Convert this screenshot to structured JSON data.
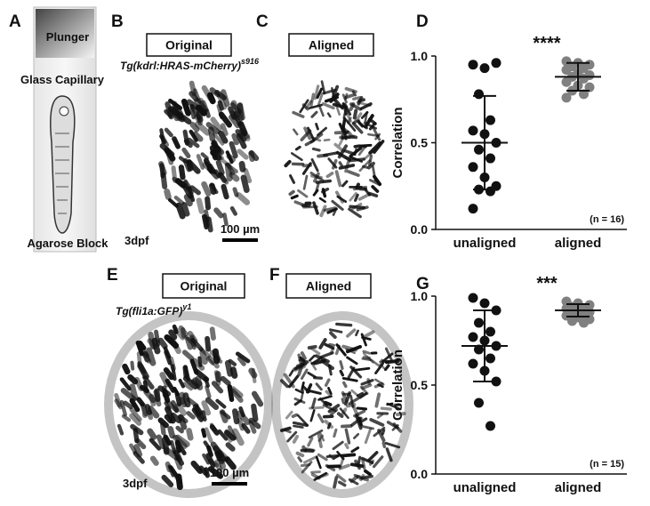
{
  "panel_a": {
    "letter": "A",
    "plunger": "Plunger",
    "capillary": "Glass Capillary",
    "block": "Agarose Block"
  },
  "panels": [
    {
      "letter": "B",
      "box": "Original",
      "transgene": {
        "text": "Tg(kdrl:HRAS-mCherry)",
        "superscript": "s916"
      },
      "stage": "3dpf",
      "scale": "100 µm"
    },
    {
      "letter": "C",
      "box": "Aligned"
    },
    {
      "letter": "E",
      "box": "Original",
      "transgene": {
        "text": "Tg(fli1a:GFP)",
        "superscript": "y1"
      },
      "stage": "3dpf",
      "scale": "100 µm"
    },
    {
      "letter": "F",
      "box": "Aligned"
    }
  ],
  "chart_data": [
    {
      "type": "dot",
      "letter": "D",
      "significance": "****",
      "n_label": "(n = 16)",
      "ylabel": "Correlation",
      "categories": [
        "unaligned",
        "aligned"
      ],
      "points": [
        [
          0.95,
          0.93,
          0.96,
          0.78,
          0.63,
          0.57,
          0.55,
          0.5,
          0.46,
          0.41,
          0.36,
          0.3,
          0.25,
          0.23,
          0.22,
          0.12
        ],
        [
          0.97,
          0.96,
          0.95,
          0.94,
          0.93,
          0.92,
          0.9,
          0.89,
          0.88,
          0.87,
          0.85,
          0.83,
          0.82,
          0.8,
          0.78,
          0.76
        ]
      ],
      "means": [
        0.5,
        0.88
      ],
      "errors": [
        0.27,
        0.08
      ],
      "colors": [
        "#111111",
        "#808080"
      ],
      "ylim": [
        0,
        1
      ],
      "yticks": [
        {
          "value": 0,
          "label": "0.0"
        },
        {
          "value": 0.5,
          "label": "0.5"
        },
        {
          "value": 1,
          "label": "1.0"
        }
      ]
    },
    {
      "type": "dot",
      "letter": "G",
      "significance": "***",
      "n_label": "(n = 15)",
      "ylabel": "Correlation",
      "categories": [
        "unaligned",
        "aligned"
      ],
      "points": [
        [
          0.99,
          0.96,
          0.92,
          0.85,
          0.8,
          0.77,
          0.75,
          0.72,
          0.7,
          0.65,
          0.62,
          0.58,
          0.52,
          0.4,
          0.27
        ],
        [
          0.97,
          0.96,
          0.95,
          0.94,
          0.93,
          0.93,
          0.92,
          0.91,
          0.91,
          0.9,
          0.89,
          0.88,
          0.87,
          0.86,
          0.85
        ]
      ],
      "means": [
        0.72,
        0.92
      ],
      "errors": [
        0.2,
        0.035
      ],
      "colors": [
        "#111111",
        "#808080"
      ],
      "ylim": [
        0,
        1
      ],
      "yticks": [
        {
          "value": 0,
          "label": "0.0"
        },
        {
          "value": 0.5,
          "label": "0.5"
        },
        {
          "value": 1,
          "label": "1.0"
        }
      ]
    }
  ]
}
